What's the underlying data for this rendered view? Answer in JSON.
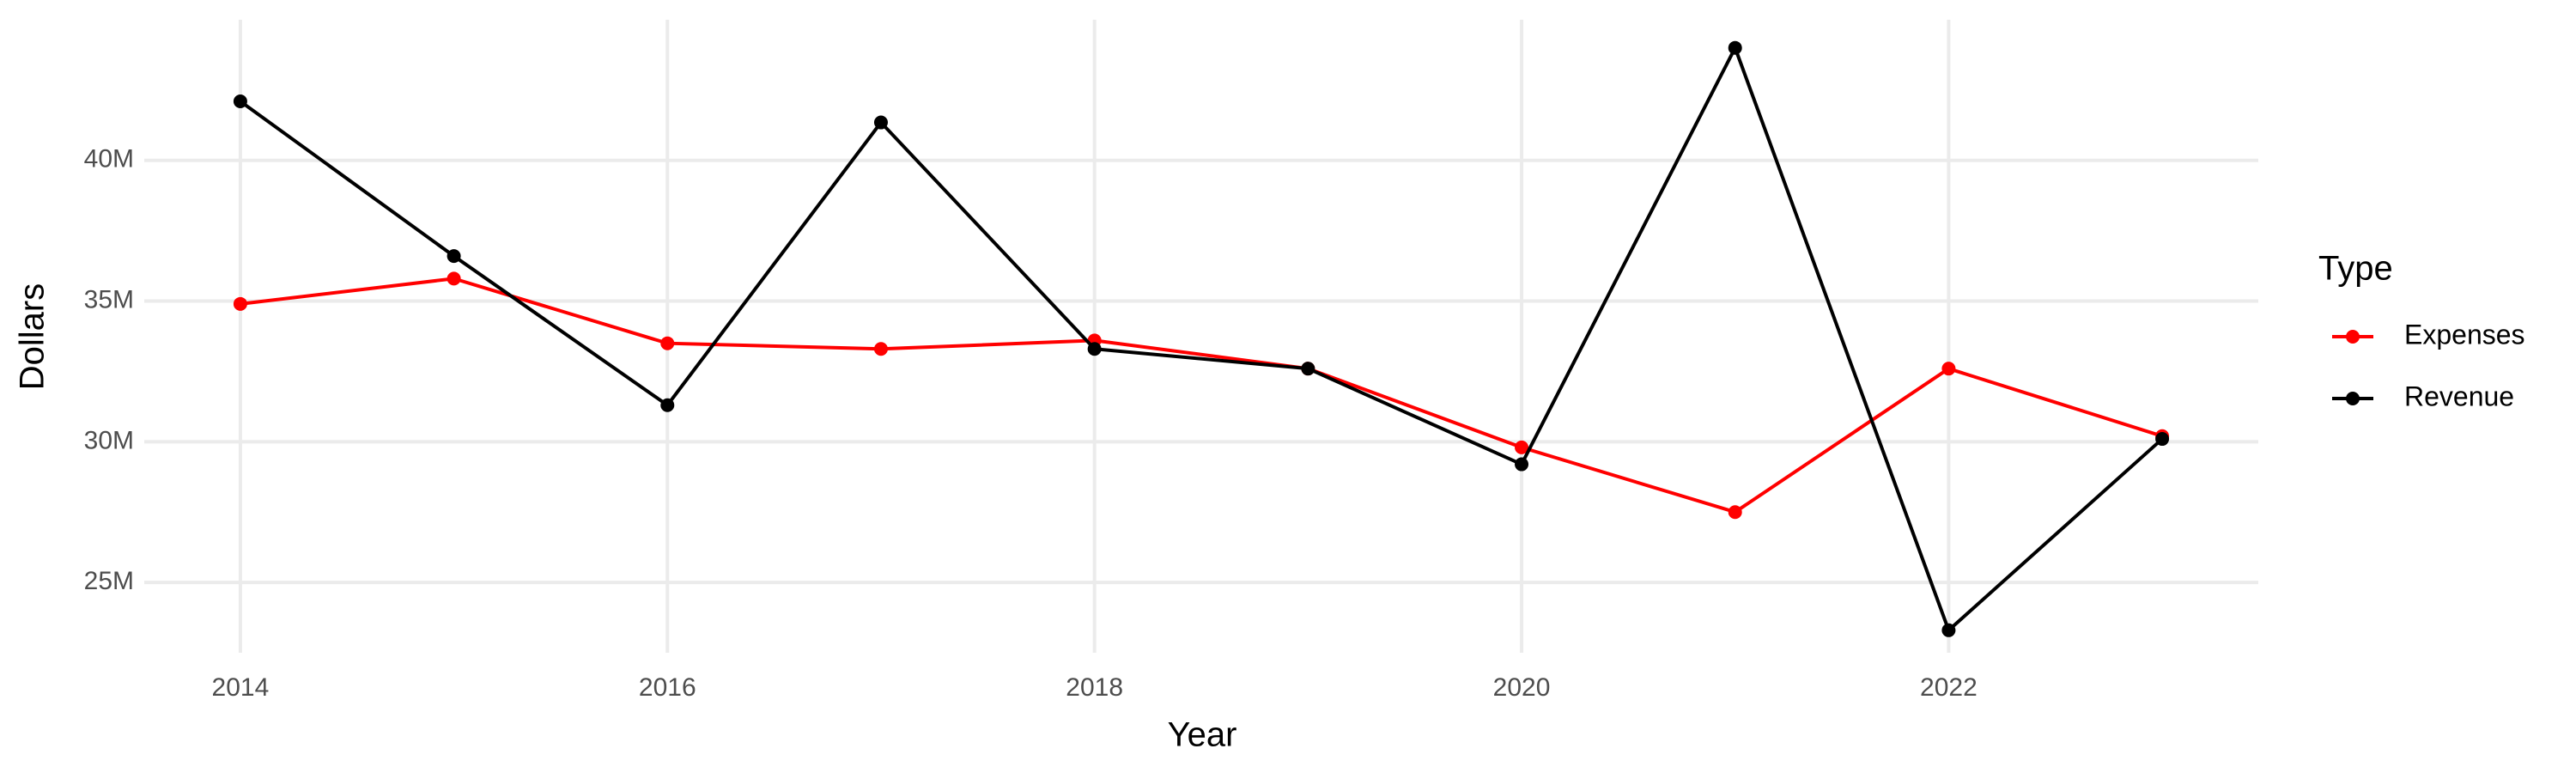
{
  "chart_data": {
    "type": "line",
    "x_label": "Year",
    "y_label": "Dollars",
    "legend_title": "Type",
    "x": [
      2014,
      2015,
      2016,
      2017,
      2018,
      2019,
      2020,
      2021,
      2022,
      2023
    ],
    "series": [
      {
        "name": "Expenses",
        "color": "#ff0000",
        "values": [
          34900000,
          35800000,
          33500000,
          33300000,
          33600000,
          32600000,
          29800000,
          27500000,
          32600000,
          30200000
        ]
      },
      {
        "name": "Revenue",
        "color": "#000000",
        "values": [
          42100000,
          36600000,
          31300000,
          41350000,
          33300000,
          32600000,
          29200000,
          44000000,
          23300000,
          30100000
        ]
      }
    ],
    "xlim": [
      2013.55,
      2023.45
    ],
    "xticks": [
      2014,
      2016,
      2018,
      2020,
      2022
    ],
    "ylim": [
      22500000,
      45000000
    ],
    "yticks": [
      {
        "value": 25000000,
        "label": "25M"
      },
      {
        "value": 30000000,
        "label": "30M"
      },
      {
        "value": 35000000,
        "label": "35M"
      },
      {
        "value": 40000000,
        "label": "40M"
      }
    ],
    "grid": true,
    "legend": "right"
  }
}
